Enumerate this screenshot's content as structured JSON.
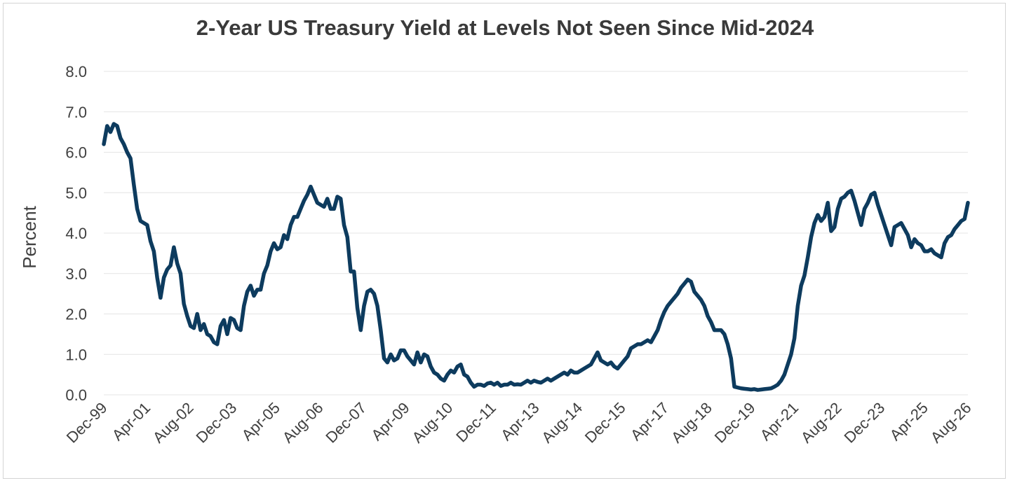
{
  "chart_data": {
    "type": "line",
    "title": "2-Year US Treasury Yield at Levels Not Seen Since Mid-2024",
    "ylabel": "Percent",
    "xlabel": "",
    "ylim": [
      0,
      8
    ],
    "y_ticks": [
      "0.0",
      "1.0",
      "2.0",
      "3.0",
      "4.0",
      "5.0",
      "6.0",
      "7.0",
      "8.0"
    ],
    "x_ticks": [
      "Dec-99",
      "Apr-01",
      "Aug-02",
      "Dec-03",
      "Apr-05",
      "Aug-06",
      "Dec-07",
      "Apr-09",
      "Aug-10",
      "Dec-11",
      "Apr-13",
      "Aug-14",
      "Dec-15",
      "Apr-17",
      "Aug-18",
      "Dec-19",
      "Apr-21",
      "Aug-22",
      "Dec-23",
      "Apr-25",
      "Aug-26"
    ],
    "grid": "horizontal",
    "legend": "none",
    "line_color": "#0d3b5e",
    "series": [
      {
        "values": [
          6.2,
          6.65,
          6.5,
          6.7,
          6.65,
          6.35,
          6.2,
          6.0,
          5.85,
          5.2,
          4.6,
          4.3,
          4.25,
          4.2,
          3.8,
          3.55,
          2.9,
          2.4,
          2.9,
          3.1,
          3.2,
          3.65,
          3.25,
          3.0,
          2.25,
          1.95,
          1.7,
          1.65,
          2.0,
          1.6,
          1.75,
          1.5,
          1.45,
          1.3,
          1.25,
          1.7,
          1.85,
          1.5,
          1.9,
          1.85,
          1.65,
          1.6,
          2.2,
          2.55,
          2.7,
          2.45,
          2.6,
          2.6,
          3.0,
          3.2,
          3.55,
          3.75,
          3.6,
          3.65,
          3.95,
          3.85,
          4.2,
          4.4,
          4.4,
          4.6,
          4.8,
          4.95,
          5.15,
          4.95,
          4.75,
          4.7,
          4.65,
          4.85,
          4.6,
          4.6,
          4.9,
          4.85,
          4.2,
          3.9,
          3.05,
          3.05,
          2.15,
          1.6,
          2.2,
          2.55,
          2.6,
          2.5,
          2.2,
          1.6,
          0.9,
          0.8,
          1.0,
          0.85,
          0.9,
          1.1,
          1.1,
          0.95,
          0.85,
          0.75,
          1.05,
          0.8,
          1.0,
          0.95,
          0.7,
          0.55,
          0.5,
          0.4,
          0.35,
          0.5,
          0.6,
          0.55,
          0.7,
          0.75,
          0.5,
          0.45,
          0.3,
          0.2,
          0.25,
          0.25,
          0.22,
          0.28,
          0.3,
          0.25,
          0.3,
          0.22,
          0.25,
          0.25,
          0.3,
          0.25,
          0.26,
          0.25,
          0.3,
          0.35,
          0.3,
          0.35,
          0.32,
          0.3,
          0.35,
          0.4,
          0.35,
          0.4,
          0.45,
          0.5,
          0.55,
          0.5,
          0.6,
          0.55,
          0.55,
          0.6,
          0.65,
          0.7,
          0.75,
          0.9,
          1.05,
          0.85,
          0.8,
          0.75,
          0.8,
          0.7,
          0.65,
          0.75,
          0.85,
          0.95,
          1.15,
          1.2,
          1.25,
          1.25,
          1.3,
          1.35,
          1.3,
          1.45,
          1.6,
          1.85,
          2.05,
          2.2,
          2.3,
          2.4,
          2.5,
          2.65,
          2.75,
          2.85,
          2.8,
          2.55,
          2.45,
          2.35,
          2.2,
          1.95,
          1.8,
          1.6,
          1.6,
          1.6,
          1.5,
          1.25,
          0.9,
          0.2,
          0.18,
          0.16,
          0.15,
          0.14,
          0.13,
          0.14,
          0.12,
          0.13,
          0.14,
          0.15,
          0.16,
          0.2,
          0.25,
          0.35,
          0.5,
          0.75,
          1.0,
          1.4,
          2.2,
          2.7,
          2.95,
          3.4,
          3.9,
          4.25,
          4.45,
          4.3,
          4.4,
          4.75,
          4.05,
          4.15,
          4.6,
          4.85,
          4.9,
          5.0,
          5.05,
          4.8,
          4.5,
          4.2,
          4.6,
          4.75,
          4.95,
          5.0,
          4.7,
          4.45,
          4.2,
          3.95,
          3.7,
          4.15,
          4.2,
          4.25,
          4.1,
          3.95,
          3.65,
          3.85,
          3.75,
          3.7,
          3.55,
          3.55,
          3.6,
          3.5,
          3.45,
          3.4,
          3.75,
          3.9,
          3.95,
          4.1,
          4.2,
          4.3,
          4.35,
          4.75
        ]
      }
    ]
  }
}
